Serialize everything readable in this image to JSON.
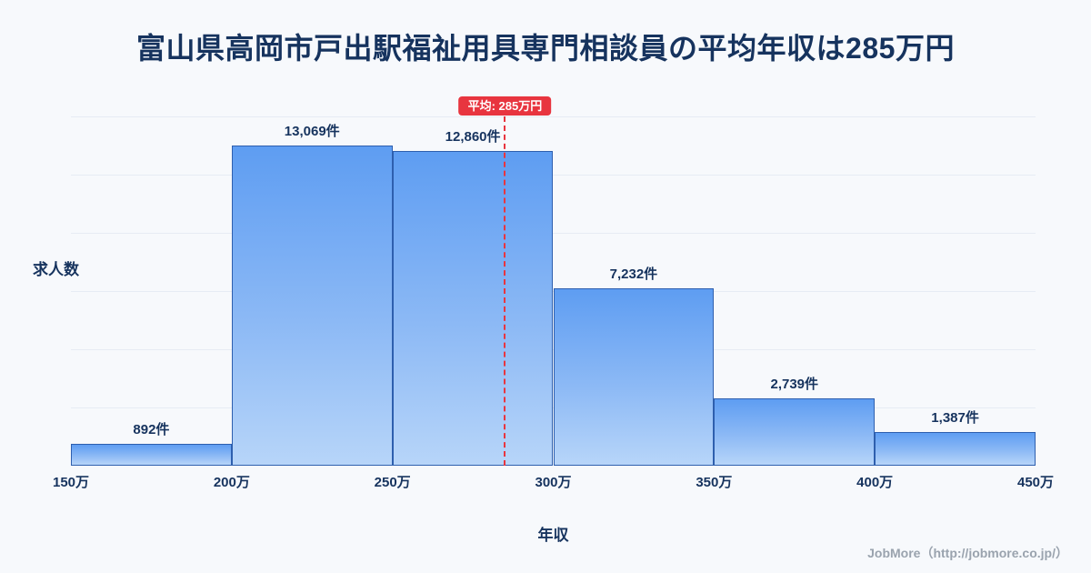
{
  "title": "富山県高岡市戸出駅福祉用具専門相談員の平均年収は285万円",
  "chart_data": {
    "type": "bar",
    "subtype": "histogram",
    "categories": [
      "150万-200万",
      "200万-250万",
      "250万-300万",
      "300万-350万",
      "350万-400万",
      "400万-450万"
    ],
    "values": [
      892,
      13069,
      12860,
      7232,
      2739,
      1387
    ],
    "value_labels": [
      "892件",
      "13,069件",
      "12,860件",
      "7,232件",
      "2,739件",
      "1,387件"
    ],
    "x_ticks": [
      "150万",
      "200万",
      "250万",
      "300万",
      "350万",
      "400万",
      "450万"
    ],
    "x_range": [
      150,
      450
    ],
    "ylim": [
      0,
      13069
    ],
    "xlabel": "年収",
    "ylabel": "求人数",
    "grid": "horizontal",
    "legend": "none",
    "average": {
      "value": 285,
      "label": "平均: 285万円"
    },
    "colors": {
      "bar_top": "#5e9df2",
      "bar_bottom": "#b7d5f9",
      "bar_border": "#2e5fae",
      "avg_line": "#e8353f",
      "title_text": "#16335e",
      "background": "#f7f9fc"
    }
  },
  "footer": {
    "credit": "JobMore（http://jobmore.co.jp/）"
  }
}
